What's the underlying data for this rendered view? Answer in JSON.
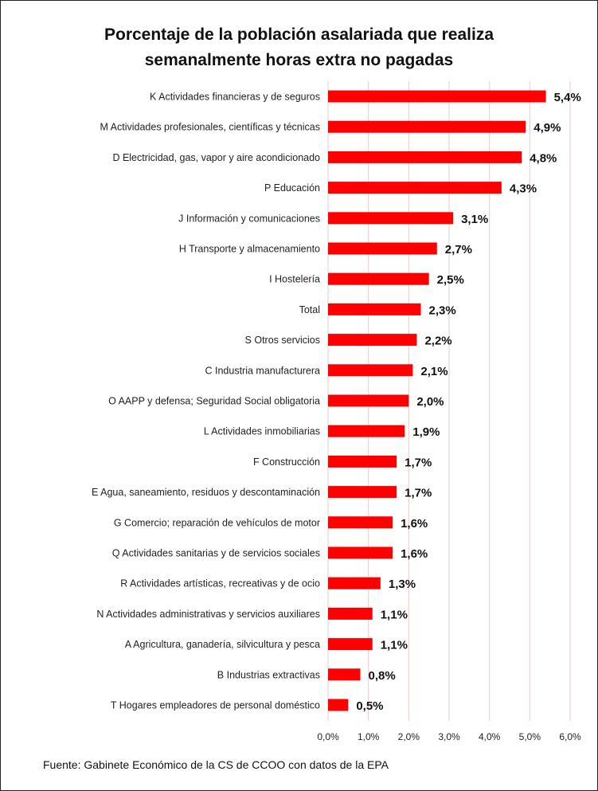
{
  "chart_data": {
    "type": "bar",
    "orientation": "horizontal",
    "title": [
      "Porcentaje de la población asalariada que realiza",
      "semanalmente  horas extra no pagadas"
    ],
    "categories": [
      "K Actividades financieras y de seguros",
      "M Actividades profesionales, científicas y técnicas",
      "D Electricidad, gas, vapor y aire acondicionado",
      "P Educación",
      "J Información y comunicaciones",
      "H Transporte y almacenamiento",
      "I Hostelería",
      "Total",
      "S Otros servicios",
      "C Industria manufacturera",
      "O AAPP y defensa; Seguridad Social obligatoria",
      "L Actividades inmobiliarias",
      "F Construcción",
      "E Agua, saneamiento, residuos y descontaminación",
      "G Comercio; reparación de vehículos de motor",
      "Q Actividades sanitarias y de servicios sociales",
      "R Actividades artísticas, recreativas y de ocio",
      "N Actividades administrativas y servicios auxiliares",
      "A Agricultura, ganadería, silvicultura y pesca",
      "B Industrias extractivas",
      "T Hogares empleadores de personal doméstico"
    ],
    "values": [
      5.4,
      4.9,
      4.8,
      4.3,
      3.1,
      2.7,
      2.5,
      2.3,
      2.2,
      2.1,
      2.0,
      1.9,
      1.7,
      1.7,
      1.6,
      1.6,
      1.3,
      1.1,
      1.1,
      0.8,
      0.5
    ],
    "value_labels": [
      "5,4%",
      "4,9%",
      "4,8%",
      "4,3%",
      "3,1%",
      "2,7%",
      "2,5%",
      "2,3%",
      "2,2%",
      "2,1%",
      "2,0%",
      "1,9%",
      "1,7%",
      "1,7%",
      "1,6%",
      "1,6%",
      "1,3%",
      "1,1%",
      "1,1%",
      "0,8%",
      "0,5%"
    ],
    "xlim": [
      0,
      6
    ],
    "xticks": [
      0,
      1,
      2,
      3,
      4,
      5,
      6
    ],
    "xtick_labels": [
      "0,0%",
      "1,0%",
      "2,0%",
      "3,0%",
      "4,0%",
      "5,0%",
      "6,0%"
    ],
    "xlabel": "",
    "ylabel": "",
    "grid": "vertical",
    "legend": "none",
    "colors": {
      "bar": "#ff0000",
      "grid": "#f2c9c9",
      "text": "#111111"
    }
  },
  "source": "Fuente: Gabinete Económico de la CS de CCOO con datos de la EPA"
}
